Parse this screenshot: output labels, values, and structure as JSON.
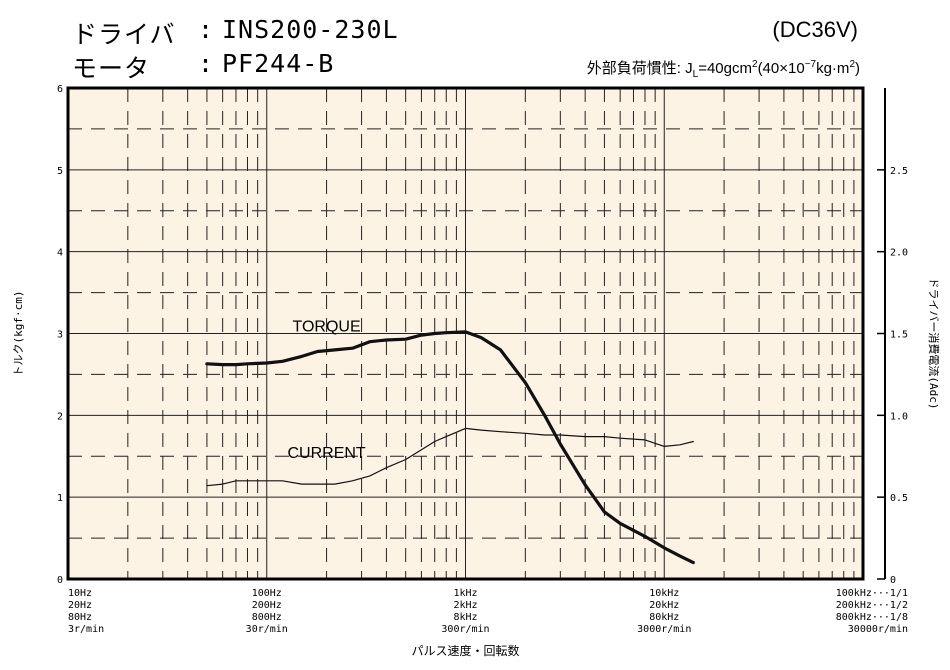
{
  "header": {
    "driver_label": "ドライバ",
    "driver_value": "INS200-230L",
    "motor_label": "モータ",
    "motor_value": "PF244-B",
    "colon": ":",
    "supply": "(DC36V)",
    "inertia_prefix": "外部負荷慣性: J",
    "inertia_sub": "L",
    "inertia_mid": "=40gcm",
    "inertia_sup1": "2",
    "inertia_mid2": "(40×10",
    "inertia_sup2": "−7",
    "inertia_mid3": "kg·m",
    "inertia_sup3": "2",
    "inertia_end": ")"
  },
  "chart_data": {
    "type": "line",
    "x_scale": "log",
    "x_unit": "Hz (10Hz range)",
    "xlim": [
      10,
      100000
    ],
    "ylim_left": [
      0,
      6
    ],
    "ylim_right": [
      0,
      3.0
    ],
    "ylabel_left": "トルク(kgf·cm)",
    "ylabel_right": "ドライバー消費電流(Adc)",
    "xlabel": "パルス速度・回転数",
    "left_ticks": [
      "0",
      "1",
      "2",
      "3",
      "4",
      "5",
      "6"
    ],
    "right_ticks": [
      "0",
      "0.5",
      "1.0",
      "1.5",
      "2.0",
      "2.5"
    ],
    "x_tick_labels": [
      {
        "lines": [
          "10Hz",
          "20Hz",
          "80Hz",
          "3r/min"
        ],
        "x": 10
      },
      {
        "lines": [
          "100Hz",
          "200Hz",
          "800Hz",
          "30r/min"
        ],
        "x": 100
      },
      {
        "lines": [
          "1kHz",
          "2kHz",
          "8kHz",
          "300r/min"
        ],
        "x": 1000
      },
      {
        "lines": [
          "10kHz",
          "20kHz",
          "80kHz",
          "3000r/min"
        ],
        "x": 10000
      },
      {
        "lines": [
          "100kHz···1/1",
          "200kHz···1/2",
          "800kHz···1/8",
          "30000r/min"
        ],
        "x": 100000
      }
    ],
    "series": [
      {
        "name": "TORQUE",
        "axis": "left",
        "x": [
          50,
          60,
          70,
          80,
          100,
          120,
          150,
          180,
          220,
          270,
          330,
          400,
          500,
          600,
          700,
          800,
          1000,
          1200,
          1500,
          2000,
          2500,
          3000,
          4000,
          5000,
          6000,
          8000,
          10000,
          12000,
          14000
        ],
        "y": [
          2.63,
          2.62,
          2.62,
          2.63,
          2.64,
          2.66,
          2.72,
          2.78,
          2.8,
          2.82,
          2.9,
          2.92,
          2.93,
          2.98,
          3.0,
          3.01,
          3.02,
          2.95,
          2.8,
          2.4,
          2.0,
          1.65,
          1.15,
          0.82,
          0.68,
          0.52,
          0.38,
          0.28,
          0.2
        ]
      },
      {
        "name": "CURRENT",
        "axis": "right",
        "x": [
          50,
          60,
          70,
          80,
          100,
          120,
          150,
          180,
          220,
          270,
          330,
          400,
          500,
          600,
          700,
          800,
          1000,
          1200,
          1500,
          2000,
          2500,
          3000,
          4000,
          5000,
          6000,
          8000,
          10000,
          12000,
          14000
        ],
        "y": [
          0.57,
          0.58,
          0.6,
          0.6,
          0.6,
          0.6,
          0.58,
          0.58,
          0.58,
          0.6,
          0.63,
          0.68,
          0.73,
          0.79,
          0.84,
          0.87,
          0.92,
          0.91,
          0.9,
          0.89,
          0.88,
          0.88,
          0.87,
          0.87,
          0.86,
          0.85,
          0.81,
          0.82,
          0.84
        ]
      }
    ],
    "annotations": [
      {
        "text": "TORQUE",
        "x": 200,
        "y": 3.1
      },
      {
        "text": "CURRENT",
        "x": 200,
        "y": 1.55
      }
    ],
    "colors": {
      "background": "#fdf3e5",
      "grid": "#222222",
      "line": "#111111"
    },
    "grid": true
  }
}
